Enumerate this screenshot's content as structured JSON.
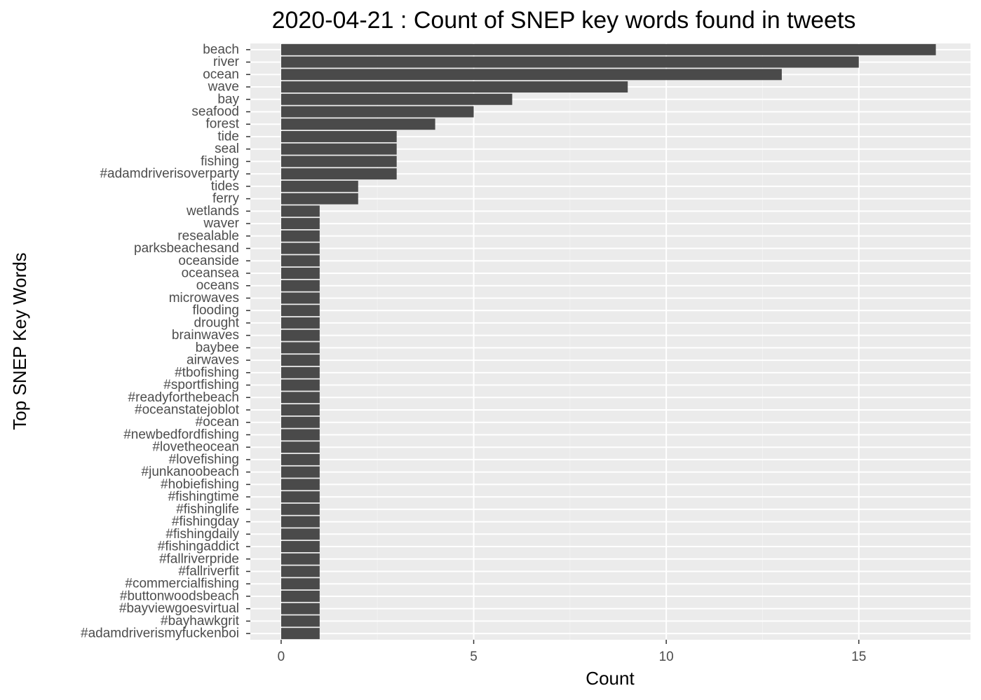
{
  "chart_data": {
    "type": "bar",
    "orientation": "horizontal",
    "title": "2020-04-21 : Count of SNEP key words found in tweets",
    "xlabel": "Count",
    "ylabel": "Top SNEP Key Words",
    "xlim": [
      -0.8,
      17.9
    ],
    "x_ticks": [
      0,
      5,
      10,
      15
    ],
    "grid": true,
    "colors": {
      "bar": "#4a4a4a",
      "panel": "#ebebeb",
      "grid": "#ffffff"
    },
    "categories": [
      "beach",
      "river",
      "ocean",
      "wave",
      "bay",
      "seafood",
      "forest",
      "tide",
      "seal",
      "fishing",
      "#adamdriverisoverparty",
      "tides",
      "ferry",
      "wetlands",
      "waver",
      "resealable",
      "parksbeachesand",
      "oceanside",
      "oceansea",
      "oceans",
      "microwaves",
      "flooding",
      "drought",
      "brainwaves",
      "baybee",
      "airwaves",
      "#tbofishing",
      "#sportfishing",
      "#readyforthebeach",
      "#oceanstatejoblot",
      "#ocean",
      "#newbedfordfishing",
      "#lovetheocean",
      "#lovefishing",
      "#junkanoobeach",
      "#hobiefishing",
      "#fishingtime",
      "#fishinglife",
      "#fishingday",
      "#fishingdaily",
      "#fishingaddict",
      "#fallriverpride",
      "#fallriverfit",
      "#commercialfishing",
      "#buttonwoodsbeach",
      "#bayviewgoesvirtual",
      "#bayhawkgrit",
      "#adamdriverismyfuckenboi"
    ],
    "values": [
      17,
      15,
      13,
      9,
      6,
      5,
      4,
      3,
      3,
      3,
      3,
      2,
      2,
      1,
      1,
      1,
      1,
      1,
      1,
      1,
      1,
      1,
      1,
      1,
      1,
      1,
      1,
      1,
      1,
      1,
      1,
      1,
      1,
      1,
      1,
      1,
      1,
      1,
      1,
      1,
      1,
      1,
      1,
      1,
      1,
      1,
      1,
      1
    ]
  }
}
